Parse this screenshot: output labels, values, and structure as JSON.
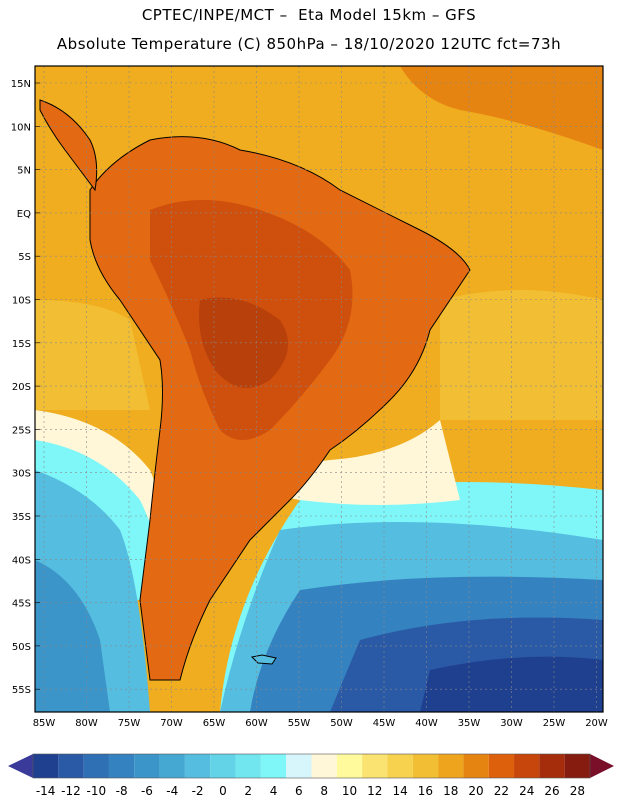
{
  "header": {
    "title_line1": "CPTEC/INPE/MCT –  Eta Model 15km – GFS",
    "title_line2": "Absolute Temperature (C) 850hPa – 18/10/2020 12UTC fct=73h"
  },
  "map": {
    "lat_labels": [
      "15N",
      "10N",
      "5N",
      "EQ",
      "5S",
      "10S",
      "15S",
      "20S",
      "25S",
      "30S",
      "35S",
      "40S",
      "45S",
      "50S",
      "55S"
    ],
    "lon_labels": [
      "85W",
      "80W",
      "75W",
      "70W",
      "65W",
      "60W",
      "55W",
      "50W",
      "45W",
      "40W",
      "35W",
      "30W",
      "25W",
      "20W"
    ],
    "colors": {
      "ocean_warm": "#f0ad1f",
      "land_hot": "#e36a12",
      "land_hotter": "#cf4f0d",
      "land_hottest": "#b8400b",
      "coast_line": "#000000"
    }
  },
  "colorbar": {
    "labels": [
      "-14",
      "-12",
      "-10",
      "-8",
      "-6",
      "-4",
      "-2",
      "0",
      "2",
      "4",
      "6",
      "8",
      "10",
      "12",
      "14",
      "16",
      "18",
      "20",
      "22",
      "24",
      "26",
      "28"
    ],
    "colors": [
      "#1f3f8f",
      "#2a5aa5",
      "#2f6fb4",
      "#3582c0",
      "#3b95c9",
      "#45a8d3",
      "#55bde0",
      "#63d3e8",
      "#72e6ef",
      "#7ff7f9",
      "#d6f6fb",
      "#fff7d8",
      "#fffa9c",
      "#fbe371",
      "#f6d24f",
      "#f2be33",
      "#eea51d",
      "#e68412",
      "#dd610c",
      "#c7460b",
      "#a52d0c",
      "#861b10"
    ],
    "under_color": "#3a3a9a",
    "over_color": "#7a0f2a"
  }
}
